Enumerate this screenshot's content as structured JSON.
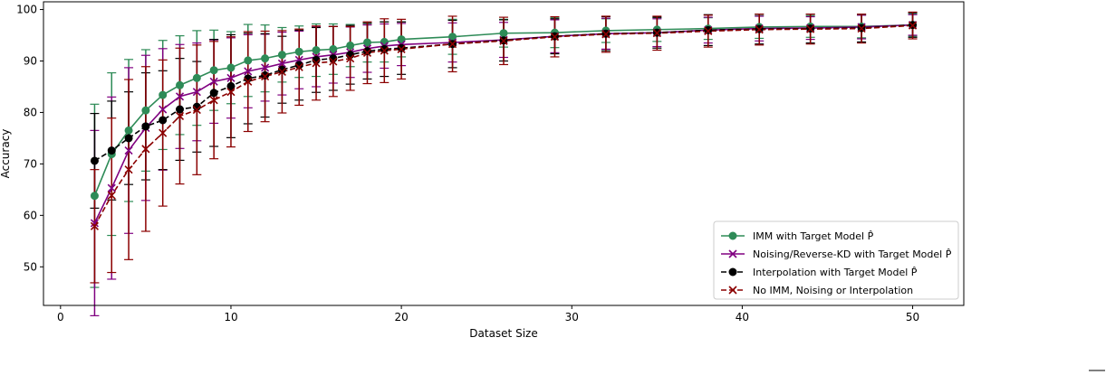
{
  "chart_data": {
    "type": "line",
    "xlabel": "Dataset Size",
    "ylabel": "Accuracy",
    "xlim": [
      -1,
      53
    ],
    "ylim": [
      42.5,
      101.5
    ],
    "xticks": [
      0,
      10,
      20,
      30,
      40,
      50
    ],
    "yticks": [
      50,
      60,
      70,
      80,
      90,
      100
    ],
    "grid": false,
    "legend_position": "lower-right",
    "series": [
      {
        "name": "IMM with Target Model $\\hat{P}$",
        "color": "#2e8b57",
        "linestyle": "solid",
        "marker": "circle",
        "x": [
          2,
          3,
          4,
          5,
          6,
          7,
          8,
          9,
          10,
          11,
          12,
          13,
          14,
          15,
          16,
          17,
          18,
          19,
          20,
          23,
          26,
          29,
          32,
          35,
          38,
          41,
          44,
          47,
          50
        ],
        "y": [
          63.8,
          71.9,
          76.5,
          80.4,
          83.4,
          85.3,
          86.7,
          88.2,
          88.7,
          90.1,
          90.5,
          91.2,
          91.8,
          92.1,
          92.3,
          93.0,
          93.6,
          93.7,
          94.2,
          94.7,
          95.4,
          95.5,
          95.9,
          96.1,
          96.3,
          96.6,
          96.7,
          96.7,
          97.0
        ],
        "y_err": [
          17.8,
          15.8,
          13.8,
          11.8,
          10.6,
          9.6,
          9.2,
          7.8,
          7.0,
          7.0,
          6.5,
          5.3,
          5.0,
          5.1,
          4.9,
          4.1,
          3.8,
          3.9,
          3.4,
          3.4,
          2.7,
          2.9,
          2.3,
          2.3,
          2.1,
          2.2,
          2.1,
          2.2,
          2.2
        ]
      },
      {
        "name": "Noising/Reverse-KD with Target Model $\\hat{P}$",
        "color": "#800080",
        "linestyle": "solid",
        "marker": "x",
        "x": [
          2,
          3,
          4,
          5,
          6,
          7,
          8,
          9,
          10,
          11,
          12,
          13,
          14,
          15,
          16,
          17,
          18,
          19,
          20,
          23,
          26,
          29,
          32,
          35,
          38,
          41,
          44,
          47,
          50
        ],
        "y": [
          58.5,
          65.3,
          72.6,
          77.0,
          80.6,
          83.1,
          84.0,
          86.0,
          86.7,
          88.0,
          88.7,
          89.5,
          90.2,
          90.8,
          91.2,
          91.7,
          92.4,
          92.9,
          93.2,
          93.6,
          94.1,
          94.8,
          95.3,
          95.5,
          96.0,
          96.3,
          96.4,
          96.6,
          97.0
        ],
        "y_err": [
          18.0,
          17.7,
          16.1,
          14.1,
          11.8,
          10.1,
          9.5,
          8.1,
          7.8,
          7.1,
          6.5,
          6.1,
          5.6,
          5.8,
          5.5,
          4.9,
          4.6,
          4.3,
          4.1,
          3.8,
          3.4,
          3.2,
          3.0,
          2.7,
          2.5,
          2.4,
          2.2,
          2.3,
          2.0
        ]
      },
      {
        "name": "Interpolation with Target Model $\\hat{P}$",
        "color": "#000000",
        "linestyle": "dashed",
        "marker": "circle",
        "x": [
          2,
          3,
          4,
          5,
          6,
          7,
          8,
          9,
          10,
          11,
          12,
          13,
          14,
          15,
          16,
          17,
          18,
          19,
          20,
          23,
          26,
          29,
          32,
          35,
          38,
          41,
          44,
          47,
          50
        ],
        "y": [
          70.6,
          72.6,
          75.0,
          77.3,
          78.5,
          80.6,
          81.1,
          83.8,
          85.1,
          86.6,
          87.2,
          88.3,
          89.2,
          90.2,
          90.5,
          91.2,
          91.9,
          92.3,
          92.5,
          93.3,
          94.0,
          94.8,
          95.3,
          95.5,
          96.0,
          96.2,
          96.3,
          96.4,
          97.0
        ],
        "y_err": [
          9.2,
          9.6,
          9.0,
          10.4,
          9.6,
          9.9,
          8.8,
          10.4,
          10.0,
          8.8,
          8.1,
          6.5,
          6.8,
          6.3,
          6.2,
          5.7,
          5.4,
          5.3,
          5.1,
          4.6,
          4.0,
          3.4,
          3.3,
          3.0,
          3.0,
          2.9,
          2.8,
          2.7,
          2.4
        ]
      },
      {
        "name": "No IMM, Noising or Interpolation",
        "color": "#8b0000",
        "linestyle": "dashed",
        "marker": "x",
        "x": [
          2,
          3,
          4,
          5,
          6,
          7,
          8,
          9,
          10,
          11,
          12,
          13,
          14,
          15,
          16,
          17,
          18,
          19,
          20,
          23,
          26,
          29,
          32,
          35,
          38,
          41,
          44,
          47,
          50
        ],
        "y": [
          57.9,
          63.9,
          68.9,
          72.9,
          76.0,
          79.3,
          80.5,
          82.4,
          84.0,
          86.0,
          87.0,
          87.9,
          88.8,
          89.6,
          89.9,
          90.5,
          91.6,
          92.0,
          92.3,
          93.3,
          93.9,
          94.7,
          95.2,
          95.4,
          95.8,
          96.1,
          96.2,
          96.3,
          96.9
        ],
        "y_err": [
          11.0,
          15.0,
          17.5,
          16.0,
          14.2,
          13.2,
          12.6,
          11.4,
          10.7,
          9.7,
          8.8,
          8.0,
          7.4,
          7.2,
          6.8,
          6.2,
          6.0,
          6.2,
          5.8,
          5.4,
          4.6,
          3.9,
          3.5,
          3.3,
          3.1,
          3.0,
          2.9,
          2.8,
          2.6
        ]
      }
    ]
  }
}
